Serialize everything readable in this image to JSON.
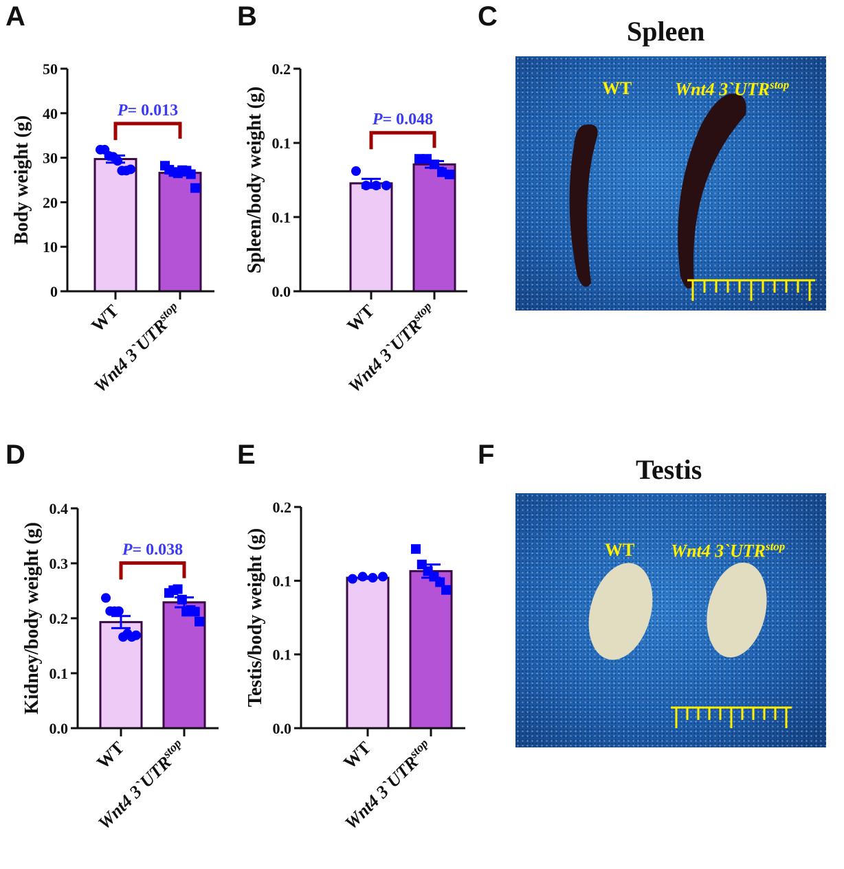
{
  "panel_labels": [
    "A",
    "B",
    "C",
    "D",
    "E",
    "F"
  ],
  "group_labels": {
    "wt": "WT",
    "mut_main": "Wnt4 3`UTR",
    "mut_sup": "stop"
  },
  "colors": {
    "wt_bar": "#eecbf6",
    "mut_bar": "#b553d6",
    "bar_edge": "#3a0b47",
    "points": "#0000ff",
    "bracket": "#a00000",
    "pvalue": "#3b3bf5",
    "photo_text": "#ffef00"
  },
  "photos": {
    "spleen": {
      "title": "Spleen",
      "wt_label": "WT",
      "mut_label": "Wnt4 3`UTR",
      "mut_sup": "stop",
      "scale_bar_ticks": 11
    },
    "testis": {
      "title": "Testis",
      "wt_label": "WT",
      "mut_label": "Wnt4 3`UTR",
      "mut_sup": "stop",
      "scale_bar_ticks": 11
    }
  },
  "chart_data": [
    {
      "id": "A",
      "type": "bar",
      "ylabel": "Body weight (g)",
      "ylim": [
        0,
        50
      ],
      "ticks": [
        0,
        10,
        20,
        30,
        40,
        50
      ],
      "tick_labels": [
        "0",
        "10",
        "20",
        "30",
        "40",
        "50"
      ],
      "categories": [
        "WT",
        "Wnt4 3`UTR stop"
      ],
      "values": [
        29.7,
        26.6
      ],
      "sem": [
        0.8,
        0.6
      ],
      "points": [
        [
          31.8,
          31.8,
          30.4,
          30.2,
          29.3,
          27.1,
          27.1,
          27.4
        ],
        [
          28.2,
          27.3,
          26.8,
          26.5,
          27.2,
          27.1,
          26.3,
          23.2
        ]
      ],
      "pvalue": {
        "label": "P",
        "text": "= 0.013"
      }
    },
    {
      "id": "B",
      "type": "bar",
      "ylabel": "Spleen/body weight (g)",
      "ylim": [
        0,
        0.2
      ],
      "ticks": [
        0,
        0.0667,
        0.1333,
        0.2
      ],
      "tick_labels": [
        "0.0",
        "0.1",
        "0.1",
        "0.2"
      ],
      "categories": [
        "WT",
        "Wnt4 3`UTR stop"
      ],
      "values": [
        0.097,
        0.114
      ],
      "sem": [
        0.004,
        0.003
      ],
      "points": [
        [
          0.108,
          0.095,
          0.095,
          0.095
        ],
        [
          0.119,
          0.119,
          0.114,
          0.107,
          0.105
        ]
      ],
      "pvalue": {
        "label": "P",
        "text": "= 0.048"
      }
    },
    {
      "id": "D",
      "type": "bar",
      "ylabel": "Kidney/body weight (g)",
      "ylim": [
        0,
        0.4
      ],
      "ticks": [
        0,
        0.1,
        0.2,
        0.3,
        0.4
      ],
      "tick_labels": [
        "0.0",
        "0.1",
        "0.2",
        "0.3",
        "0.4"
      ],
      "categories": [
        "WT",
        "Wnt4 3`UTR stop"
      ],
      "values": [
        0.193,
        0.229
      ],
      "sem": [
        0.011,
        0.009
      ],
      "points": [
        [
          0.237,
          0.213,
          0.213,
          0.213,
          0.166,
          0.172,
          0.166,
          0.169
        ],
        [
          0.246,
          0.251,
          0.253,
          0.234,
          0.212,
          0.215,
          0.212,
          0.194
        ]
      ],
      "pvalue": {
        "label": "P",
        "text": "= 0.038"
      }
    },
    {
      "id": "E",
      "type": "bar",
      "ylabel": "Testis/body weight (g)",
      "ylim": [
        0,
        0.2
      ],
      "ticks": [
        0,
        0.0667,
        0.1333,
        0.2
      ],
      "tick_labels": [
        "0.0",
        "0.1",
        "0.1",
        "0.2"
      ],
      "categories": [
        "WT",
        "Wnt4 3`UTR stop"
      ],
      "values": [
        0.136,
        0.142
      ],
      "sem": [
        0.001,
        0.006
      ],
      "points": [
        [
          0.135,
          0.137,
          0.136,
          0.137
        ],
        [
          0.162,
          0.148,
          0.142,
          0.137,
          0.132,
          0.125
        ]
      ],
      "pvalue": null
    }
  ]
}
